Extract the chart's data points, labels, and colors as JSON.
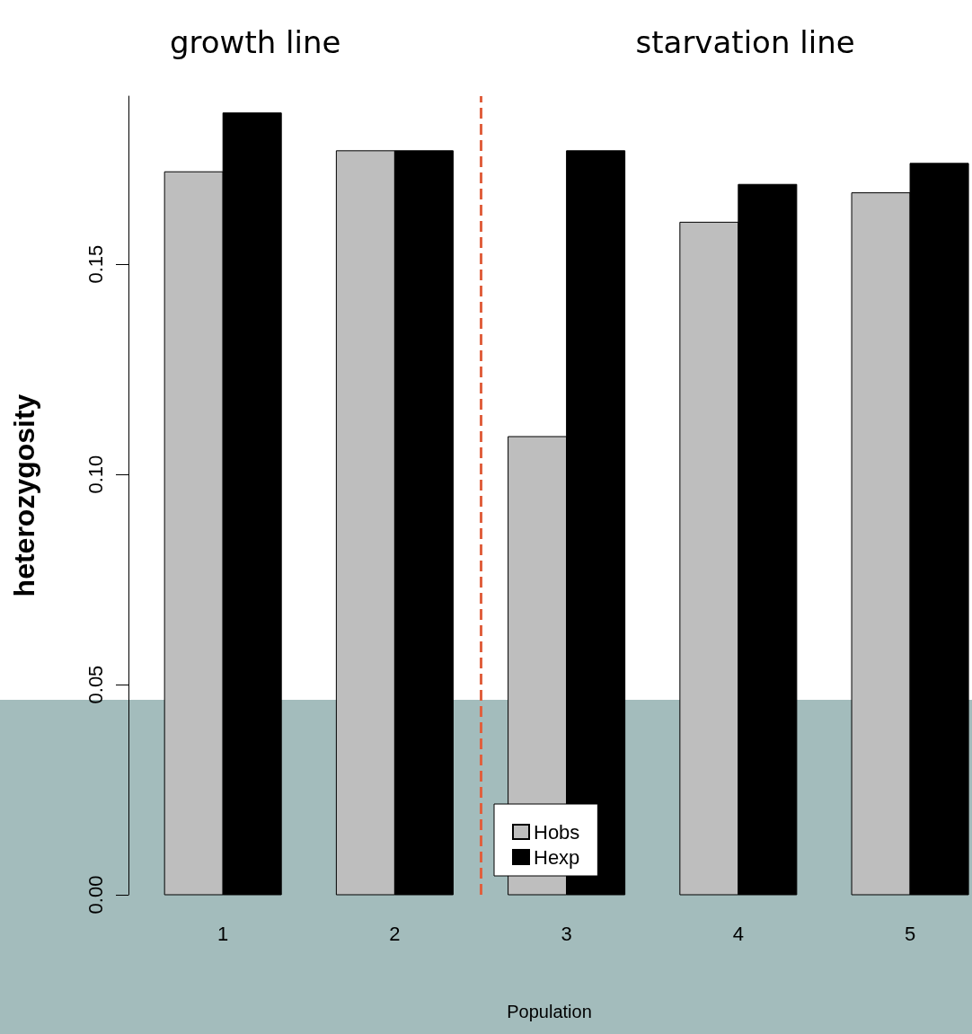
{
  "chart_data": {
    "type": "bar",
    "xlabel": "Population",
    "ylabel": "heterozygosity",
    "x": [
      1,
      2,
      3,
      4,
      5
    ],
    "xlim": [
      0.45,
      5.35
    ],
    "xticks": [
      1,
      2,
      3,
      4,
      5
    ],
    "ylim": [
      0,
      0.19
    ],
    "yticks": [
      {
        "value": 0,
        "label": "0.00"
      },
      {
        "value": 0.05,
        "label": "0.05"
      },
      {
        "value": 0.1,
        "label": "0.10"
      },
      {
        "value": 0.15,
        "label": "0.15"
      }
    ],
    "series": [
      {
        "name": "Hobs",
        "color": "#bebebe",
        "values": [
          0.172,
          0.177,
          0.109,
          0.16,
          0.167
        ]
      },
      {
        "name": "Hexp",
        "color": "#000000",
        "values": [
          0.186,
          0.177,
          0.177,
          0.169,
          0.174
        ]
      }
    ],
    "ref_lines": [
      {
        "axis": "x",
        "value": 2.5,
        "color": "#e0603e",
        "line_style": "dashed"
      }
    ],
    "annotations": [
      "growth line",
      "starvation line"
    ],
    "legend": "bottom",
    "grid": false
  }
}
